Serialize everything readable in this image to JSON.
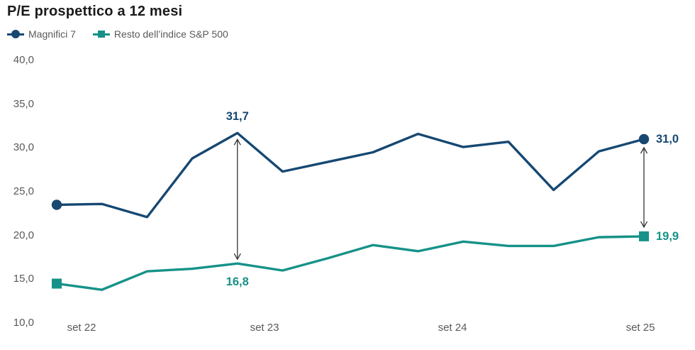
{
  "chart_data": {
    "type": "line",
    "title": "P/E prospettico a 12 mesi",
    "grid": false,
    "legend_position": "top-left",
    "y_axis": {
      "min": 10,
      "max": 40,
      "tick_labels": [
        "40,0",
        "35,0",
        "30,0",
        "25,0",
        "20,0",
        "15,0",
        "10,0"
      ],
      "tick_values": [
        40,
        35,
        30,
        25,
        20,
        15,
        10
      ]
    },
    "x_axis": {
      "tick_labels": [
        "set 22",
        "set 23",
        "set 24",
        "set 25"
      ]
    },
    "series": [
      {
        "name": "Magnifici 7",
        "color": "#164872",
        "marker": "circle",
        "markers_at": "ends",
        "values": [
          23.5,
          23.6,
          22.1,
          28.8,
          31.7,
          27.3,
          28.4,
          29.5,
          31.6,
          30.1,
          30.7,
          25.2,
          29.6,
          31.0
        ]
      },
      {
        "name": "Resto dell’indice S&P 500",
        "color": "#169288",
        "marker": "square",
        "markers_at": "ends",
        "values": [
          14.5,
          13.8,
          15.9,
          16.2,
          16.8,
          16.0,
          17.4,
          18.9,
          18.2,
          19.3,
          18.8,
          18.8,
          19.8,
          19.9
        ]
      }
    ],
    "point_labels": [
      {
        "series": 0,
        "index": 4,
        "text": "31,7",
        "position": "above"
      },
      {
        "series": 1,
        "index": 4,
        "text": "16,8",
        "position": "below"
      },
      {
        "series": 0,
        "index": 13,
        "text": "31,0",
        "position": "right"
      },
      {
        "series": 1,
        "index": 13,
        "text": "19,9",
        "position": "right"
      }
    ],
    "gap_arrows": [
      {
        "index": 4,
        "at_markers": false
      },
      {
        "index": 13,
        "at_markers": true
      }
    ],
    "arrow_color": "#333333"
  }
}
